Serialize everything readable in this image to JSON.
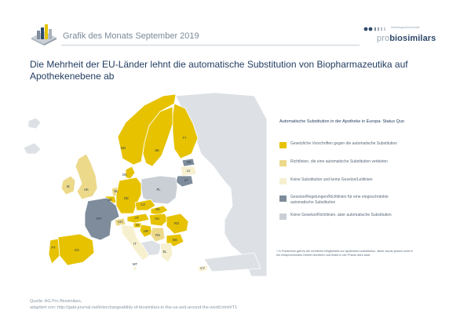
{
  "header": {
    "title": "Grafik des Monats September 2019",
    "logo_small": "Arbeitsgemeinschaft",
    "logo_name_prefix": "pro",
    "logo_name_main": "biosimilars"
  },
  "headline": "Die Mehrheit der EU-Länder lehnt die automatische Substitution von Biopharmazeutika auf Apothekenebene ab",
  "colors": {
    "gesetzlich": "#e6c200",
    "richtlinien_verbieten": "#ecd98a",
    "keine": "#f7f0cf",
    "gesetze_eingeschraenkt": "#7e8c9b",
    "keine_aber": "#c9cfd5",
    "non_eu": "#dde1e5"
  },
  "legend": {
    "title": "Automatische Substitution in der Apotheke in Europa: Status Quo",
    "items": [
      {
        "key": "gesetzlich",
        "label": "Gesetzliche Vorschriften gegen die automatische Substitution",
        "color": "#e6c200"
      },
      {
        "key": "richtlinien_verbieten",
        "label": "Richtlinien, die eine automatische Substitution verbieten",
        "color": "#ecd98a"
      },
      {
        "key": "keine",
        "label": "Keine Substitution und keine Gesetze/Leitlinien",
        "color": "#f7f0cf"
      },
      {
        "key": "gesetze_eingeschraenkt",
        "label": "Gesetze/Regelungen/Richtlinien für eine eingeschränkte automatische Substitution",
        "color": "#7e8c9b"
      },
      {
        "key": "keine_aber",
        "label": "Keine Gesetze/Richtlinien, aber automatische Substitution",
        "color": "#c9cfd5"
      }
    ]
  },
  "footnote": "* In Frankreich gibt es die rechtliche Möglichkeit zur Apotheken-substitution, diese wurde jedoch nicht in ein entsprechendes Dekret überführt und findet in der Praxis nicht statt.",
  "countries": [
    {
      "code": "IE",
      "category": "richtlinien_verbieten"
    },
    {
      "code": "UK",
      "category": "richtlinien_verbieten"
    },
    {
      "code": "NO",
      "category": "gesetzlich"
    },
    {
      "code": "SE",
      "category": "gesetzlich"
    },
    {
      "code": "FI",
      "category": "gesetzlich"
    },
    {
      "code": "EE",
      "category": "gesetze_eingeschraenkt"
    },
    {
      "code": "LV",
      "category": "keine"
    },
    {
      "code": "LT",
      "category": "gesetze_eingeschraenkt"
    },
    {
      "code": "DK",
      "category": "gesetzlich"
    },
    {
      "code": "NL",
      "category": "richtlinien_verbieten"
    },
    {
      "code": "BE",
      "category": "gesetzlich"
    },
    {
      "code": "DE",
      "category": "gesetzlich"
    },
    {
      "code": "PL",
      "category": "keine_aber"
    },
    {
      "code": "CZ",
      "category": "gesetzlich"
    },
    {
      "code": "SK",
      "category": "gesetzlich"
    },
    {
      "code": "FR*",
      "category": "gesetze_eingeschraenkt"
    },
    {
      "code": "CH",
      "category": "richtlinien_verbieten"
    },
    {
      "code": "AT",
      "category": "gesetzlich"
    },
    {
      "code": "HU",
      "category": "gesetzlich"
    },
    {
      "code": "RO",
      "category": "gesetzlich"
    },
    {
      "code": "SI",
      "category": "gesetzlich"
    },
    {
      "code": "HR",
      "category": "gesetzlich"
    },
    {
      "code": "RS",
      "category": "richtlinien_verbieten"
    },
    {
      "code": "BG",
      "category": "gesetzlich"
    },
    {
      "code": "PT",
      "category": "gesetzlich"
    },
    {
      "code": "ES",
      "category": "gesetzlich"
    },
    {
      "code": "IT",
      "category": "keine"
    },
    {
      "code": "EL",
      "category": "keine"
    },
    {
      "code": "MT",
      "category": "keine"
    },
    {
      "code": "CY",
      "category": "keine"
    }
  ],
  "source": {
    "line1": "Quelle:    AG Pro Biosimilars,",
    "line2": "               adaptiert von: http://gabi-journal.net/interchangeability-of-biosimilars-in-the-us-and-around-the-world.html#T1"
  }
}
